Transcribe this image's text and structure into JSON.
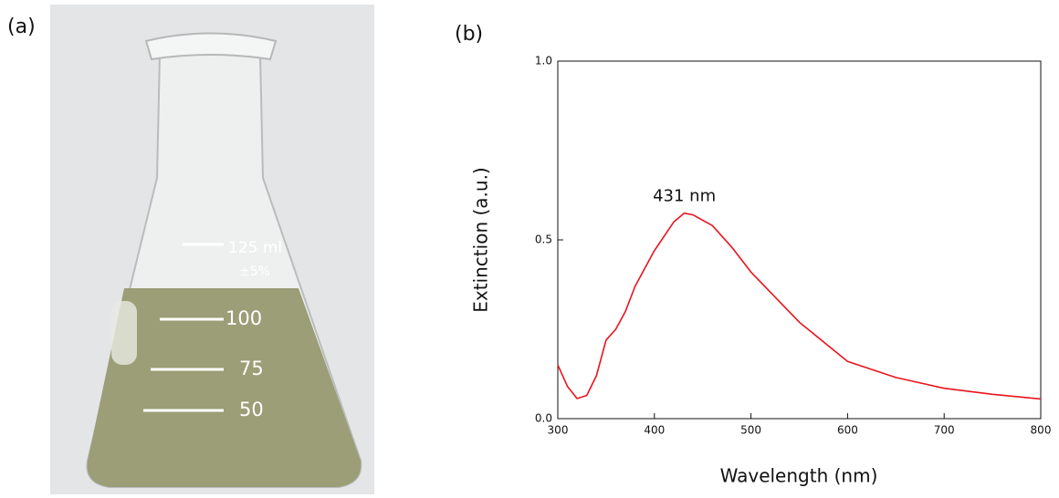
{
  "panel_labels": [
    "(a)",
    "(b)"
  ],
  "photo": {
    "markings": [
      "125 ml",
      "±5%",
      "100",
      "75",
      "50"
    ]
  },
  "chart_data": {
    "type": "line",
    "x_label": "Wavelength (nm)",
    "y_label": "Extinction (a.u.)",
    "x": [
      300,
      310,
      320,
      330,
      340,
      350,
      360,
      370,
      380,
      400,
      420,
      431,
      440,
      460,
      480,
      500,
      550,
      600,
      650,
      700,
      750,
      800
    ],
    "values": [
      0.15,
      0.09,
      0.056,
      0.065,
      0.12,
      0.22,
      0.25,
      0.3,
      0.37,
      0.47,
      0.55,
      0.575,
      0.57,
      0.54,
      0.48,
      0.41,
      0.27,
      0.16,
      0.115,
      0.085,
      0.068,
      0.055
    ],
    "color": "#e8141c",
    "xlim": [
      300,
      800
    ],
    "xticks": [
      300,
      400,
      500,
      600,
      700,
      800
    ],
    "ylim": [
      0,
      1
    ],
    "yticks": [
      {
        "value": 0,
        "label": "0.0"
      },
      0.5,
      {
        "value": 1,
        "label": "1.0"
      }
    ],
    "annotation": {
      "text": "431 nm",
      "x": 431,
      "y": 0.575
    }
  }
}
